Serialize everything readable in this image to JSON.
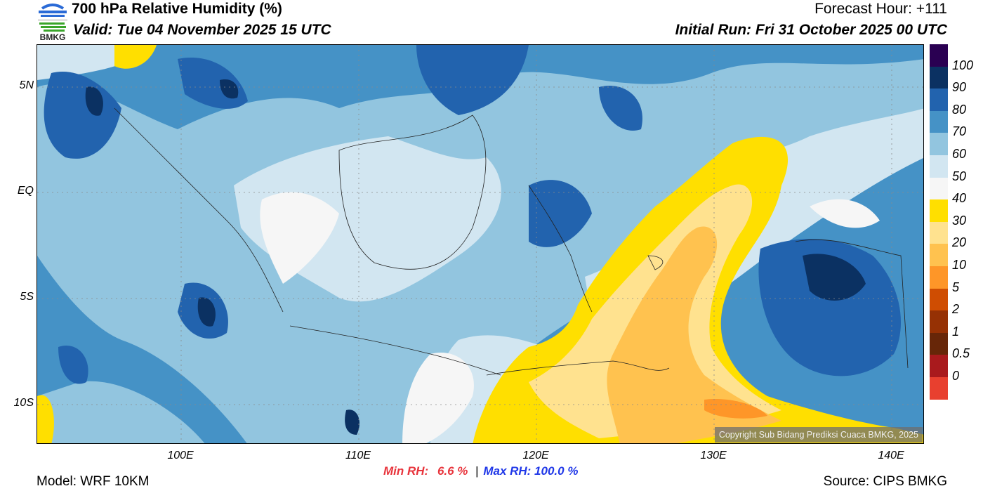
{
  "header": {
    "title": "700 hPa Relative Humidity (%)",
    "valid": "Valid: Tue 04 November 2025 15 UTC",
    "forecast_hour": "Forecast Hour: +111",
    "initial_run": "Initial Run: Fri 31 October 2025 00 UTC",
    "logo_text": "BMKG"
  },
  "map": {
    "lat_ticks": [
      "5N",
      "EQ",
      "5S",
      "10S"
    ],
    "lon_ticks": [
      "100E",
      "110E",
      "120E",
      "130E",
      "140E"
    ],
    "copyright": "Copyright Sub Bidang Prediksi Cuaca BMKG, 2025"
  },
  "colorbar": {
    "labels": [
      "100",
      "90",
      "80",
      "70",
      "60",
      "50",
      "40",
      "30",
      "20",
      "10",
      "5",
      "2",
      "1",
      "0.5",
      "0"
    ],
    "colors": [
      "#2a0052",
      "#0b3162",
      "#2263ae",
      "#4592c6",
      "#92c5df",
      "#d2e6f1",
      "#f6f6f6",
      "#ffdf00",
      "#ffe28f",
      "#ffc24f",
      "#fe9628",
      "#cf4d02",
      "#963104",
      "#672608",
      "#a91a1d",
      "#e8402f"
    ]
  },
  "stats": {
    "min_label": "Min RH:",
    "min_value": "6.6 %",
    "separator": "|",
    "max_text": "Max RH: 100.0 %"
  },
  "footer": {
    "model": "Model: WRF 10KM",
    "source": "Source: CIPS BMKG"
  }
}
